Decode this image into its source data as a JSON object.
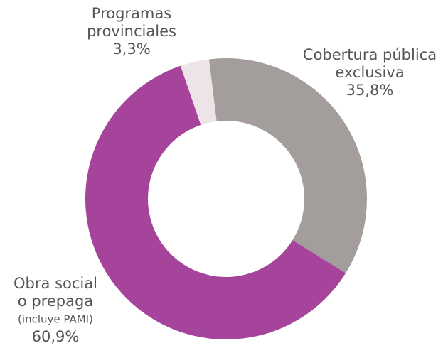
{
  "chart_data": {
    "type": "donut",
    "categories": [
      [
        "Cobertura pública",
        "exclusiva"
      ],
      [
        "Obra social",
        "o prepaga",
        "(incluye PAMI)"
      ],
      [
        "Programas",
        "provinciales"
      ]
    ],
    "values": [
      35.8,
      60.9,
      3.3
    ],
    "value_labels": [
      "35,8%",
      "60,9%",
      "3,3%"
    ],
    "colors": [
      "#a39e9c",
      "#a5449a",
      "#ede4e8"
    ]
  }
}
